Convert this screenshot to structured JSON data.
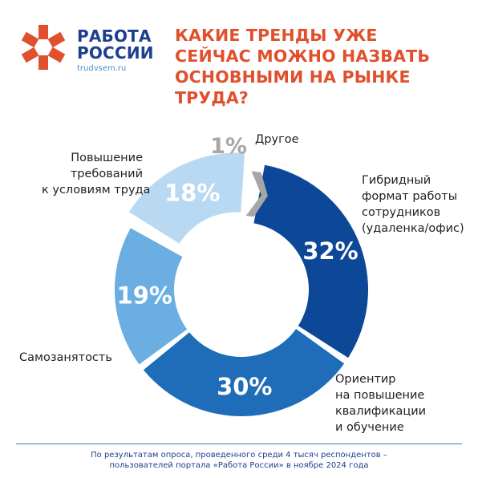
{
  "brand": {
    "name_line1": "РАБОТА",
    "name_line2": "РОССИИ",
    "site": "trudvsem.ru",
    "logo_color": "#e0502d",
    "name_color": "#1c3f8f"
  },
  "headline": {
    "lines": [
      "КАКИЕ ТРЕНДЫ УЖЕ",
      "СЕЙЧАС МОЖНО НАЗВАТЬ",
      "ОСНОВНЫМИ НА РЫНКЕ",
      "ТРУДА?"
    ],
    "color": "#e0502d"
  },
  "chart_data": {
    "type": "pie",
    "variant": "donut",
    "slices": [
      {
        "label": "Гибридный формат работы сотрудников (удаленка/офис)",
        "label_lines": [
          "Гибридный",
          "формат работы",
          "сотрудников",
          "(удаленка/офис)"
        ],
        "value": 32,
        "value_label": "32%",
        "color": "#0d4797"
      },
      {
        "label": "Ориентир на повышение квалификации и обучение",
        "label_lines": [
          "Ориентир",
          "на повышение",
          "квалификации",
          "и обучение"
        ],
        "value": 30,
        "value_label": "30%",
        "color": "#1f6db8"
      },
      {
        "label": "Самозанятость",
        "label_lines": [
          "Самозанятость"
        ],
        "value": 19,
        "value_label": "19%",
        "color": "#6aaee2"
      },
      {
        "label": "Повышение требований к условиям труда",
        "label_lines": [
          "Повышение",
          "требований",
          "к условиям труда"
        ],
        "value": 18,
        "value_label": "18%",
        "color": "#b9d9f3"
      },
      {
        "label": "Другое",
        "label_lines": [
          "Другое"
        ],
        "value": 1,
        "value_label": "1%",
        "color": "#a6a6a6"
      }
    ]
  },
  "footer": {
    "line1": "По результатам опроса, проведенного среди 4 тысяч респондентов –",
    "line2": "пользователей портала «Работа России» в ноябре 2024 года"
  }
}
